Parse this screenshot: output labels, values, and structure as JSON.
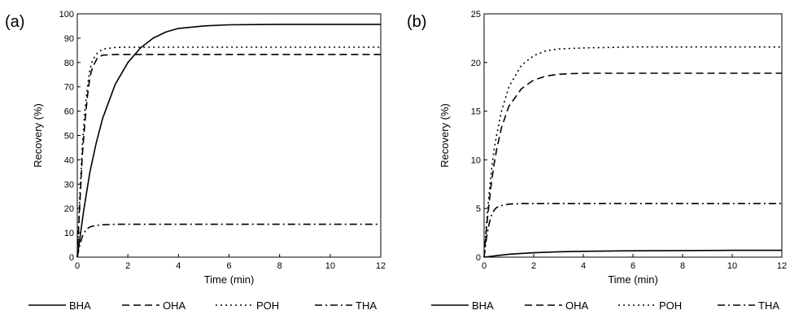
{
  "chart_data": [
    {
      "type": "line",
      "panel_label": "(a)",
      "xlabel": "Time (min)",
      "ylabel": "Recovery (%)",
      "xlim": [
        0,
        12
      ],
      "ylim": [
        0,
        100
      ],
      "xticks": [
        0,
        2,
        4,
        6,
        8,
        10,
        12
      ],
      "yticks": [
        0,
        10,
        20,
        30,
        40,
        50,
        60,
        70,
        80,
        90,
        100
      ],
      "grid": false,
      "series": [
        {
          "name": "BHA",
          "dash": "solid",
          "x": [
            0,
            0.25,
            0.5,
            0.75,
            1,
            1.5,
            2,
            2.5,
            3,
            3.5,
            4,
            5,
            6,
            7,
            8,
            10,
            12
          ],
          "y": [
            0,
            19,
            35,
            47,
            57,
            71,
            80,
            86,
            90,
            92.5,
            94,
            95,
            95.5,
            95.6,
            95.7,
            95.7,
            95.7
          ]
        },
        {
          "name": "OHA",
          "dash": "dash",
          "x": [
            0,
            0.1,
            0.2,
            0.3,
            0.4,
            0.5,
            0.6,
            0.8,
            1,
            1.5,
            2,
            4,
            6,
            8,
            10,
            12
          ],
          "y": [
            0,
            22,
            42,
            55,
            66,
            74,
            78,
            82,
            83,
            83.3,
            83.3,
            83.3,
            83.3,
            83.3,
            83.3,
            83.3
          ]
        },
        {
          "name": "POH",
          "dash": "dot",
          "x": [
            0,
            0.1,
            0.2,
            0.3,
            0.4,
            0.5,
            0.6,
            0.8,
            1,
            1.5,
            2,
            4,
            6,
            8,
            10,
            12
          ],
          "y": [
            0,
            25,
            46,
            60,
            70,
            77,
            81,
            84,
            85.5,
            86.2,
            86.3,
            86.3,
            86.3,
            86.3,
            86.3,
            86.3
          ]
        },
        {
          "name": "THA",
          "dash": "dashdot",
          "x": [
            0,
            0.1,
            0.2,
            0.3,
            0.4,
            0.5,
            0.7,
            1,
            1.5,
            2,
            4,
            6,
            8,
            10,
            12
          ],
          "y": [
            0,
            5,
            8.5,
            10.5,
            11.7,
            12.4,
            13,
            13.3,
            13.5,
            13.5,
            13.5,
            13.5,
            13.5,
            13.5,
            13.5
          ]
        }
      ]
    },
    {
      "type": "line",
      "panel_label": "(b)",
      "xlabel": "Time (min)",
      "ylabel": "Recovery (%)",
      "xlim": [
        0,
        12
      ],
      "ylim": [
        0,
        25
      ],
      "xticks": [
        0,
        2,
        4,
        6,
        8,
        10,
        12
      ],
      "yticks": [
        0,
        5,
        10,
        15,
        20,
        25
      ],
      "grid": false,
      "series": [
        {
          "name": "BHA",
          "dash": "solid",
          "x": [
            0,
            0.5,
            1,
            2,
            3,
            4,
            6,
            8,
            10,
            12
          ],
          "y": [
            0,
            0.15,
            0.3,
            0.45,
            0.55,
            0.6,
            0.65,
            0.68,
            0.7,
            0.7
          ]
        },
        {
          "name": "OHA",
          "dash": "dash",
          "x": [
            0,
            0.1,
            0.2,
            0.3,
            0.4,
            0.5,
            0.7,
            1,
            1.5,
            2,
            2.5,
            3,
            4,
            6,
            8,
            10,
            12
          ],
          "y": [
            0,
            3,
            5.5,
            7.7,
            9.5,
            11,
            13.3,
            15.5,
            17.3,
            18.2,
            18.6,
            18.8,
            18.9,
            18.9,
            18.9,
            18.9,
            18.9
          ]
        },
        {
          "name": "POH",
          "dash": "dot",
          "x": [
            0,
            0.1,
            0.2,
            0.3,
            0.4,
            0.5,
            0.7,
            1,
            1.5,
            2,
            2.5,
            3,
            4,
            6,
            8,
            10,
            12
          ],
          "y": [
            0,
            3.5,
            6.5,
            9,
            11,
            12.5,
            15,
            17.5,
            19.7,
            20.7,
            21.2,
            21.4,
            21.5,
            21.6,
            21.6,
            21.6,
            21.6
          ]
        },
        {
          "name": "THA",
          "dash": "dashdot",
          "x": [
            0,
            0.1,
            0.2,
            0.3,
            0.4,
            0.5,
            0.7,
            1,
            1.5,
            2,
            4,
            6,
            8,
            10,
            12
          ],
          "y": [
            0,
            2,
            3.4,
            4.3,
            4.8,
            5.1,
            5.3,
            5.45,
            5.5,
            5.5,
            5.5,
            5.5,
            5.5,
            5.5,
            5.5
          ]
        }
      ]
    }
  ]
}
